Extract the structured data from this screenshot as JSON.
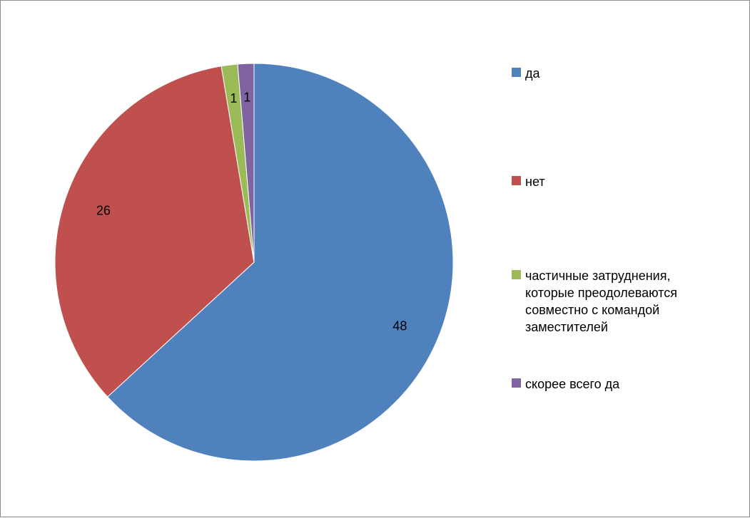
{
  "chart_data": {
    "type": "pie",
    "title": "",
    "categories": [
      "да",
      "нет",
      "частичные затруднения,\nкоторые преодолеваются\nсовместно с командой\nзаместителей",
      "скорее всего да"
    ],
    "values": [
      48,
      26,
      1,
      1
    ],
    "colors": [
      "#4f81bd",
      "#c0504d",
      "#9bbb59",
      "#8064a2"
    ],
    "data_labels": [
      "48",
      "26",
      "1",
      "1"
    ],
    "legend_position": "right",
    "start_angle": "12 o'clock",
    "direction": "clockwise"
  }
}
